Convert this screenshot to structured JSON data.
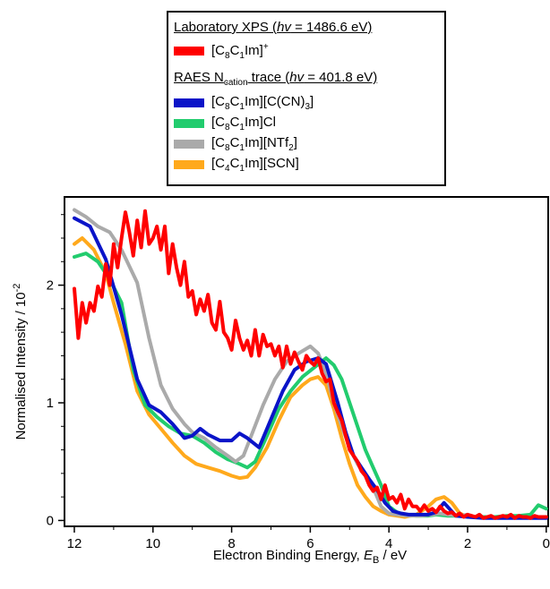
{
  "chart_data": {
    "type": "line",
    "xlabel": "Electron Binding Energy, E_B / eV",
    "ylabel": "Normalised Intensity / 10^-2",
    "xlim": [
      12.25,
      -0.05
    ],
    "x_reversed": true,
    "ylim": [
      -0.05,
      2.75
    ],
    "x_ticks": [
      "12",
      "10",
      "8",
      "6",
      "4",
      "2",
      "0"
    ],
    "y_ticks": [
      "0",
      "1",
      "2"
    ],
    "legend_position": "top-center",
    "legend": {
      "header1": "Laboratory XPS (hν = 1486.6 eV)",
      "header2": "RAES N_cation trace (hν = 401.8 eV)"
    },
    "series": [
      {
        "name": "[C8C1Im]+",
        "color": "#ff0000",
        "x": [
          12,
          11.9,
          11.8,
          11.7,
          11.6,
          11.5,
          11.4,
          11.3,
          11.2,
          11.1,
          11,
          10.9,
          10.8,
          10.7,
          10.6,
          10.5,
          10.4,
          10.3,
          10.2,
          10.1,
          10,
          9.9,
          9.8,
          9.7,
          9.6,
          9.5,
          9.4,
          9.3,
          9.2,
          9.1,
          9,
          8.9,
          8.8,
          8.7,
          8.6,
          8.5,
          8.4,
          8.3,
          8.2,
          8.1,
          8,
          7.9,
          7.8,
          7.7,
          7.6,
          7.5,
          7.4,
          7.3,
          7.2,
          7.1,
          7,
          6.9,
          6.8,
          6.7,
          6.6,
          6.5,
          6.4,
          6.3,
          6.2,
          6.1,
          6,
          5.9,
          5.8,
          5.7,
          5.6,
          5.5,
          5.4,
          5.3,
          5.2,
          5.1,
          5,
          4.9,
          4.8,
          4.7,
          4.6,
          4.5,
          4.4,
          4.3,
          4.2,
          4.1,
          4,
          3.9,
          3.8,
          3.7,
          3.6,
          3.5,
          3.4,
          3.3,
          3.2,
          3.1,
          3,
          2.9,
          2.8,
          2.7,
          2.6,
          2.5,
          2.4,
          2.3,
          2.2,
          2.1,
          2,
          1.9,
          1.8,
          1.7,
          1.6,
          1.5,
          1.4,
          1.3,
          1.2,
          1.1,
          1,
          0.9,
          0.8,
          0.7,
          0.6,
          0.5,
          0.4,
          0.3,
          0.2,
          0.1,
          0
        ],
        "y": [
          1.97,
          1.55,
          1.85,
          1.68,
          1.85,
          1.78,
          1.99,
          1.9,
          2.18,
          2.0,
          2.35,
          2.15,
          2.4,
          2.62,
          2.45,
          2.25,
          2.55,
          2.32,
          2.63,
          2.35,
          2.4,
          2.5,
          2.3,
          2.5,
          2.1,
          2.35,
          2.15,
          2.0,
          2.2,
          1.9,
          1.95,
          1.75,
          1.88,
          1.78,
          1.92,
          1.68,
          1.62,
          1.86,
          1.6,
          1.55,
          1.45,
          1.7,
          1.55,
          1.45,
          1.53,
          1.4,
          1.62,
          1.4,
          1.58,
          1.48,
          1.5,
          1.4,
          1.48,
          1.3,
          1.48,
          1.33,
          1.43,
          1.35,
          1.28,
          1.4,
          1.35,
          1.32,
          1.38,
          1.25,
          1.18,
          1.2,
          1.0,
          0.92,
          0.85,
          0.72,
          0.6,
          0.55,
          0.5,
          0.42,
          0.38,
          0.3,
          0.25,
          0.28,
          0.18,
          0.3,
          0.18,
          0.2,
          0.15,
          0.22,
          0.1,
          0.18,
          0.12,
          0.12,
          0.08,
          0.13,
          0.08,
          0.1,
          0.07,
          0.12,
          0.08,
          0.06,
          0.07,
          0.04,
          0.06,
          0.03,
          0.05,
          0.04,
          0.03,
          0.05,
          0.02,
          0.03,
          0.04,
          0.02,
          0.03,
          0.04,
          0.03,
          0.05,
          0.02,
          0.04,
          0.03,
          0.03,
          0.02,
          0.04,
          0.03,
          0.03,
          0.03
        ]
      },
      {
        "name": "[C8C1Im][C(CN)3]",
        "color": "#0a14c8",
        "x": [
          12,
          11.6,
          11.2,
          10.8,
          10.4,
          10.1,
          9.8,
          9.5,
          9.2,
          9,
          8.8,
          8.6,
          8.3,
          8,
          7.8,
          7.6,
          7.3,
          7,
          6.7,
          6.4,
          6.1,
          5.8,
          5.6,
          5.3,
          5.1,
          4.9,
          4.7,
          4.5,
          4.3,
          4.1,
          3.9,
          3.7,
          3.5,
          3.2,
          3,
          2.8,
          2.6,
          2.3,
          2,
          1.6,
          1.2,
          0.8,
          0.4,
          0
        ],
        "y": [
          2.57,
          2.5,
          2.22,
          1.75,
          1.2,
          0.98,
          0.92,
          0.82,
          0.7,
          0.72,
          0.78,
          0.73,
          0.68,
          0.68,
          0.74,
          0.7,
          0.62,
          0.86,
          1.1,
          1.28,
          1.35,
          1.38,
          1.33,
          1.0,
          0.75,
          0.55,
          0.45,
          0.35,
          0.26,
          0.15,
          0.08,
          0.06,
          0.05,
          0.05,
          0.05,
          0.07,
          0.15,
          0.04,
          0.03,
          0.02,
          0.02,
          0.02,
          0.02,
          0.02
        ]
      },
      {
        "name": "[C8C1Im]Cl",
        "color": "#22cc6e",
        "x": [
          12,
          11.7,
          11.4,
          11.1,
          10.8,
          10.5,
          10.2,
          9.9,
          9.6,
          9.3,
          9,
          8.7,
          8.4,
          8.1,
          7.8,
          7.6,
          7.4,
          7.1,
          6.8,
          6.5,
          6.2,
          5.9,
          5.6,
          5.4,
          5.2,
          5,
          4.8,
          4.6,
          4.4,
          4.2,
          4,
          3.8,
          3.6,
          3.3,
          3,
          2.8,
          2.5,
          2.2,
          1.9,
          1.6,
          1.3,
          1,
          0.7,
          0.4,
          0.2,
          0
        ],
        "y": [
          2.24,
          2.27,
          2.2,
          2.05,
          1.85,
          1.28,
          0.98,
          0.88,
          0.8,
          0.74,
          0.72,
          0.66,
          0.58,
          0.52,
          0.48,
          0.45,
          0.5,
          0.72,
          0.95,
          1.1,
          1.22,
          1.3,
          1.38,
          1.32,
          1.2,
          1.0,
          0.8,
          0.6,
          0.45,
          0.3,
          0.12,
          0.07,
          0.05,
          0.04,
          0.04,
          0.05,
          0.04,
          0.04,
          0.03,
          0.03,
          0.03,
          0.04,
          0.04,
          0.05,
          0.13,
          0.1
        ]
      },
      {
        "name": "[C8C1Im][NTf2]",
        "color": "#aaaaaa",
        "x": [
          12,
          11.7,
          11.4,
          11.1,
          10.8,
          10.4,
          10.1,
          9.8,
          9.5,
          9.2,
          9,
          8.7,
          8.4,
          8.1,
          7.9,
          7.7,
          7.5,
          7.2,
          6.9,
          6.6,
          6.3,
          6,
          5.8,
          5.6,
          5.4,
          5.2,
          5,
          4.8,
          4.6,
          4.4,
          4.2,
          4,
          3.8,
          3.5,
          3.2,
          2.9,
          2.7,
          2.5,
          2.2,
          2
        ],
        "y": [
          2.64,
          2.58,
          2.5,
          2.45,
          2.3,
          2.02,
          1.55,
          1.15,
          0.95,
          0.82,
          0.75,
          0.7,
          0.62,
          0.55,
          0.5,
          0.55,
          0.72,
          0.98,
          1.2,
          1.35,
          1.42,
          1.48,
          1.42,
          1.25,
          1.0,
          0.8,
          0.62,
          0.48,
          0.38,
          0.28,
          0.12,
          0.06,
          0.05,
          0.04,
          0.04,
          0.05,
          0.06,
          0.05,
          0.04,
          0.05
        ]
      },
      {
        "name": "[C4C1Im][SCN]",
        "color": "#ffa91c",
        "x": [
          12,
          11.8,
          11.5,
          11.2,
          11,
          10.7,
          10.4,
          10.1,
          9.8,
          9.5,
          9.2,
          8.9,
          8.6,
          8.3,
          8,
          7.8,
          7.6,
          7.4,
          7.1,
          6.8,
          6.5,
          6.2,
          6,
          5.8,
          5.6,
          5.4,
          5.2,
          5,
          4.8,
          4.6,
          4.4,
          4.2,
          4,
          3.8,
          3.6,
          3.3,
          3,
          2.8,
          2.6,
          2.4,
          2.2,
          2
        ],
        "y": [
          2.35,
          2.4,
          2.3,
          2.1,
          1.85,
          1.5,
          1.1,
          0.9,
          0.78,
          0.66,
          0.55,
          0.48,
          0.45,
          0.42,
          0.38,
          0.36,
          0.37,
          0.45,
          0.62,
          0.85,
          1.05,
          1.15,
          1.2,
          1.22,
          1.15,
          0.95,
          0.7,
          0.48,
          0.3,
          0.2,
          0.12,
          0.08,
          0.05,
          0.04,
          0.03,
          0.05,
          0.12,
          0.18,
          0.2,
          0.15,
          0.06,
          0.03
        ]
      }
    ]
  }
}
